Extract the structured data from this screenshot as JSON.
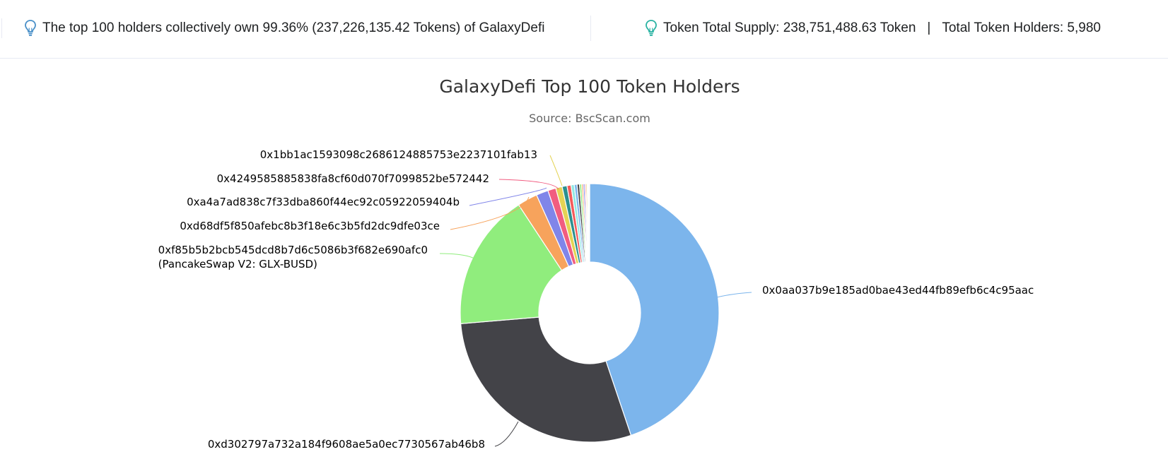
{
  "info": {
    "left_text": "The top 100 holders collectively own 99.36% (237,226,135.42 Tokens) of GalaxyDefi",
    "supply_text": "Token Total Supply: 238,751,488.63 Token",
    "separator": "|",
    "holders_text": "Total Token Holders: 5,980",
    "icon": "lightbulb-icon",
    "icon_color": "#4a90c8",
    "icon_color_right": "#2ab3a3"
  },
  "chart_data": {
    "type": "pie",
    "donut": true,
    "title": "GalaxyDefi Top 100 Token Holders",
    "subtitle": "Source: BscScan.com",
    "slices": [
      {
        "name": "0x0aa037b9e185ad0bae43ed44fb89efb6c4c95aac",
        "value": 44.6,
        "color": "#7cb5ec",
        "label": "0x0aa037b9e185ad0bae43ed44fb89efb6c4c95aac"
      },
      {
        "name": "0xd302797a732a184f9608ae5a0ec7730567ab46b8",
        "value": 28.7,
        "color": "#434348",
        "label": "0xd302797a732a184f9608ae5a0ec7730567ab46b8"
      },
      {
        "name": "0xf85b5b2bcb545dcd8b7d6c5086b3f682e690afc0",
        "value": 17.0,
        "color": "#90ed7d",
        "label": "0xf85b5b2bcb545dcd8b7d6c5086b3f682e690afc0",
        "label2": "(PancakeSwap V2: GLX-BUSD)"
      },
      {
        "name": "0xd68df5f850afebc8b3f18e6c3b5fd2dc9dfe03ce",
        "value": 2.5,
        "color": "#f7a35c",
        "label": "0xd68df5f850afebc8b3f18e6c3b5fd2dc9dfe03ce"
      },
      {
        "name": "0xa4a7ad838c7f33dba860f44ec92c05922059404b",
        "value": 1.5,
        "color": "#8085e9",
        "label": "0xa4a7ad838c7f33dba860f44ec92c05922059404b"
      },
      {
        "name": "0x4249585885838fa8cf60d070f7099852be572442",
        "value": 1.0,
        "color": "#f15c80",
        "label": "0x4249585885838fa8cf60d070f7099852be572442"
      },
      {
        "name": "0x1bb1ac1593098c2686124885753e2237101fab13",
        "value": 0.8,
        "color": "#e4d354",
        "label": "0x1bb1ac1593098c2686124885753e2237101fab13"
      },
      {
        "name": "",
        "value": 0.6,
        "color": "#2b908f"
      },
      {
        "name": "",
        "value": 0.5,
        "color": "#f45b5b"
      },
      {
        "name": "",
        "value": 0.4,
        "color": "#91e8e1"
      },
      {
        "name": "",
        "value": 0.35,
        "color": "#7cb5ec"
      },
      {
        "name": "",
        "value": 0.3,
        "color": "#434348"
      },
      {
        "name": "",
        "value": 0.25,
        "color": "#90ed7d"
      },
      {
        "name": "",
        "value": 0.2,
        "color": "#f7a35c"
      },
      {
        "name": "",
        "value": 0.2,
        "color": "#8085e9"
      },
      {
        "name": "",
        "value": 0.15,
        "color": "#f15c80"
      },
      {
        "name": "",
        "value": 0.15,
        "color": "#e4d354"
      },
      {
        "name": "",
        "value": 0.1,
        "color": "#2b908f"
      },
      {
        "name": "",
        "value": 0.1,
        "color": "#91e8e1"
      },
      {
        "name": "",
        "value": 0.1,
        "color": "#7cb5ec"
      }
    ]
  }
}
